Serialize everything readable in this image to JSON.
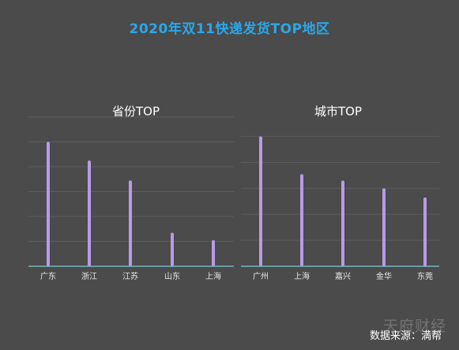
{
  "title": "2020年双11快递发货TOP地区",
  "source": "数据来源：満帮",
  "watermark": "天府财经",
  "colors": {
    "bar": "#b99ae8",
    "title": "#2ba7e8",
    "axis": "#7ec9d6",
    "background": "#4a4b4a"
  },
  "chart_data": [
    {
      "type": "bar",
      "title": "省份TOP",
      "categories": [
        "广东",
        "浙江",
        "江苏",
        "山东",
        "上海"
      ],
      "values": [
        100,
        85,
        69,
        27,
        21
      ],
      "ylim": [
        0,
        120
      ],
      "grid": true,
      "legend": "none"
    },
    {
      "type": "bar",
      "title": "城市TOP",
      "categories": [
        "广州",
        "上海",
        "嘉兴",
        "金华",
        "东莞"
      ],
      "values": [
        100,
        71,
        66,
        60,
        53
      ],
      "ylim": [
        0,
        115
      ],
      "grid": true,
      "legend": "none"
    }
  ]
}
